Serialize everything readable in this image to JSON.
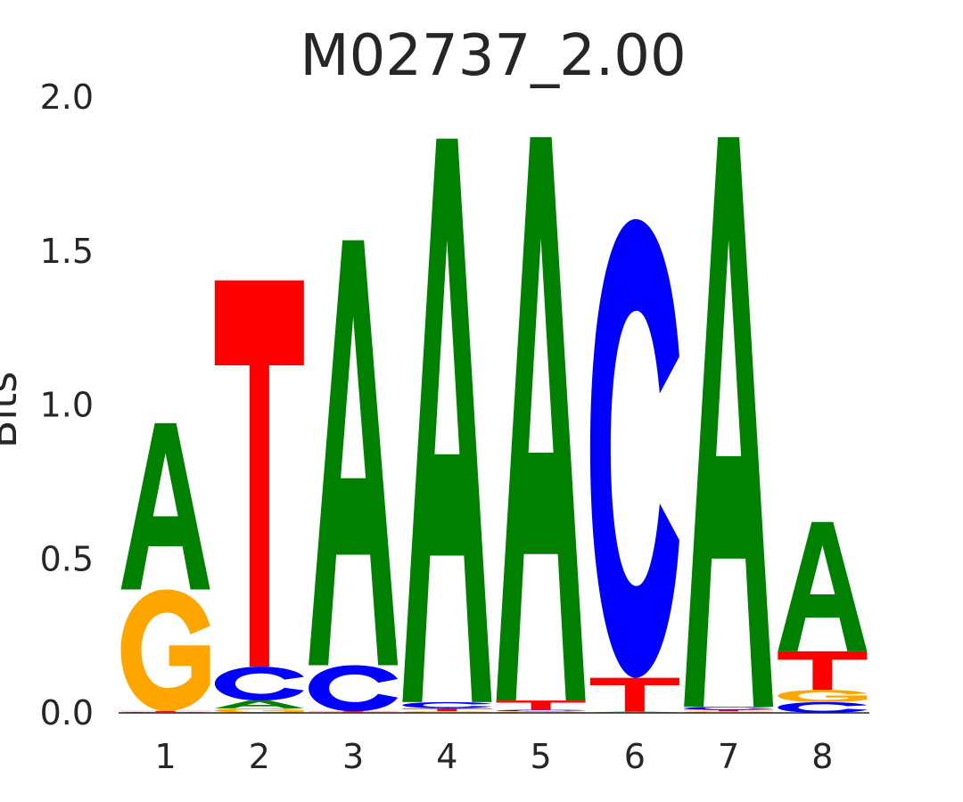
{
  "chart_data": {
    "type": "sequence-logo",
    "title": "M02737_2.00",
    "ylabel": "Bits",
    "ylim": [
      0,
      2
    ],
    "yticks": [
      "0.0",
      "0.5",
      "1.0",
      "1.5",
      "2.0"
    ],
    "categories": [
      "1",
      "2",
      "3",
      "4",
      "5",
      "6",
      "7",
      "8"
    ],
    "colors": {
      "A": "#008000",
      "C": "#0000ff",
      "G": "#ffa500",
      "T": "#ff0000"
    },
    "positions": [
      {
        "position": "1",
        "stack": [
          {
            "letter": "C",
            "bits": 0.003
          },
          {
            "letter": "T",
            "bits": 0.003
          },
          {
            "letter": "G",
            "bits": 0.395
          },
          {
            "letter": "A",
            "bits": 0.54
          }
        ]
      },
      {
        "position": "2",
        "stack": [
          {
            "letter": "G",
            "bits": 0.015
          },
          {
            "letter": "A",
            "bits": 0.025
          },
          {
            "letter": "C",
            "bits": 0.11
          },
          {
            "letter": "T",
            "bits": 1.255
          }
        ]
      },
      {
        "position": "3",
        "stack": [
          {
            "letter": "G",
            "bits": 0.002
          },
          {
            "letter": "T",
            "bits": 0.003
          },
          {
            "letter": "C",
            "bits": 0.15
          },
          {
            "letter": "A",
            "bits": 1.38
          }
        ]
      },
      {
        "position": "4",
        "stack": [
          {
            "letter": "G",
            "bits": 0.005
          },
          {
            "letter": "T",
            "bits": 0.01
          },
          {
            "letter": "C",
            "bits": 0.02
          },
          {
            "letter": "A",
            "bits": 1.83
          }
        ]
      },
      {
        "position": "5",
        "stack": [
          {
            "letter": "G",
            "bits": 0.005
          },
          {
            "letter": "C",
            "bits": 0.005
          },
          {
            "letter": "T",
            "bits": 0.03
          },
          {
            "letter": "A",
            "bits": 1.83
          }
        ]
      },
      {
        "position": "6",
        "stack": [
          {
            "letter": "G",
            "bits": 0.002
          },
          {
            "letter": "A",
            "bits": 0.002
          },
          {
            "letter": "T",
            "bits": 0.11
          },
          {
            "letter": "C",
            "bits": 1.49
          }
        ]
      },
      {
        "position": "7",
        "stack": [
          {
            "letter": "G",
            "bits": 0.005
          },
          {
            "letter": "T",
            "bits": 0.005
          },
          {
            "letter": "C",
            "bits": 0.01
          },
          {
            "letter": "A",
            "bits": 1.85
          }
        ]
      },
      {
        "position": "8",
        "stack": [
          {
            "letter": "C",
            "bits": 0.035
          },
          {
            "letter": "G",
            "bits": 0.04
          },
          {
            "letter": "T",
            "bits": 0.125
          },
          {
            "letter": "A",
            "bits": 0.42
          }
        ]
      }
    ]
  }
}
